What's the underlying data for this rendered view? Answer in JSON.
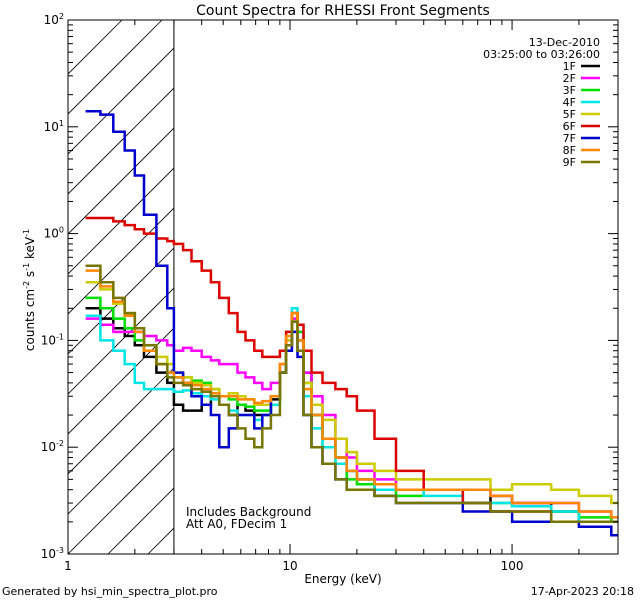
{
  "chart_data": {
    "type": "line",
    "title": "Count Spectra for RHESSI Front Segments",
    "xlabel": "Energy (keV)",
    "ylabel_parts": {
      "base": "counts cm",
      "exp1": "-2",
      "mid": " s",
      "exp2": "-1",
      "mid2": " keV",
      "exp3": "-1"
    },
    "xscale": "log",
    "yscale": "log",
    "xlim": [
      1,
      300
    ],
    "ylim": [
      0.001,
      100
    ],
    "x_ticks": [
      {
        "value": 1,
        "label": "1"
      },
      {
        "value": 10,
        "label": "10"
      },
      {
        "value": 100,
        "label": "100"
      }
    ],
    "y_ticks": [
      {
        "value": 0.001,
        "base": "10",
        "exp": "-3"
      },
      {
        "value": 0.01,
        "base": "10",
        "exp": "-2"
      },
      {
        "value": 0.1,
        "base": "10",
        "exp": "-1"
      },
      {
        "value": 1,
        "base": "10",
        "exp": "0"
      },
      {
        "value": 10,
        "base": "10",
        "exp": "1"
      },
      {
        "value": 100,
        "base": "10",
        "exp": "2"
      }
    ],
    "date": "13-Dec-2010",
    "time_range": "03:25:00 to 03:26:00",
    "hatched_region_max_kev": 3,
    "annotations": [
      "Includes Background",
      "Att A0, FDecim 1"
    ],
    "series": [
      {
        "name": "1F",
        "color": "#000000",
        "x": [
          1.2,
          1.4,
          1.6,
          1.8,
          2.0,
          2.2,
          2.5,
          2.8,
          3.0,
          3.3,
          3.6,
          4.0,
          4.4,
          4.8,
          5.3,
          5.8,
          6.3,
          6.9,
          7.5,
          8.2,
          9.0,
          9.6,
          10.2,
          10.8,
          11.5,
          12.5,
          14,
          16,
          18,
          20,
          24,
          30,
          40,
          60,
          80,
          100,
          150,
          200,
          280
        ],
        "y": [
          0.2,
          0.16,
          0.13,
          0.11,
          0.09,
          0.07,
          0.05,
          0.04,
          0.025,
          0.022,
          0.022,
          0.025,
          0.03,
          0.025,
          0.02,
          0.025,
          0.022,
          0.02,
          0.02,
          0.028,
          0.05,
          0.09,
          0.15,
          0.1,
          0.05,
          0.02,
          0.012,
          0.008,
          0.006,
          0.005,
          0.004,
          0.004,
          0.004,
          0.003,
          0.0035,
          0.003,
          0.0025,
          0.002,
          0.002
        ]
      },
      {
        "name": "2F",
        "color": "#ff00ff",
        "x": [
          1.2,
          1.4,
          1.6,
          1.8,
          2.0,
          2.2,
          2.5,
          2.8,
          3.0,
          3.3,
          3.6,
          4.0,
          4.4,
          4.8,
          5.3,
          5.8,
          6.3,
          6.9,
          7.5,
          8.2,
          9.0,
          9.6,
          10.2,
          10.8,
          11.5,
          12.5,
          14,
          16,
          18,
          20,
          24,
          30,
          40,
          60,
          80,
          100,
          150,
          200,
          280
        ],
        "y": [
          0.16,
          0.14,
          0.12,
          0.12,
          0.12,
          0.11,
          0.1,
          0.09,
          0.08,
          0.085,
          0.08,
          0.07,
          0.065,
          0.06,
          0.06,
          0.05,
          0.045,
          0.04,
          0.035,
          0.04,
          0.06,
          0.1,
          0.16,
          0.12,
          0.05,
          0.03,
          0.02,
          0.012,
          0.008,
          0.006,
          0.005,
          0.004,
          0.004,
          0.004,
          0.0035,
          0.003,
          0.003,
          0.0025,
          0.002
        ]
      },
      {
        "name": "3F",
        "color": "#00dd00",
        "x": [
          1.2,
          1.4,
          1.6,
          1.8,
          2.0,
          2.2,
          2.5,
          2.8,
          3.0,
          3.3,
          3.6,
          4.0,
          4.4,
          4.8,
          5.3,
          5.8,
          6.3,
          6.9,
          7.5,
          8.2,
          9.0,
          9.6,
          10.2,
          10.8,
          11.5,
          12.5,
          14,
          16,
          18,
          20,
          24,
          30,
          40,
          60,
          80,
          100,
          150,
          200,
          280
        ],
        "y": [
          0.25,
          0.2,
          0.16,
          0.13,
          0.1,
          0.08,
          0.06,
          0.05,
          0.045,
          0.045,
          0.042,
          0.04,
          0.035,
          0.03,
          0.028,
          0.025,
          0.024,
          0.022,
          0.022,
          0.025,
          0.05,
          0.1,
          0.18,
          0.12,
          0.04,
          0.02,
          0.01,
          0.007,
          0.005,
          0.0045,
          0.004,
          0.0035,
          0.004,
          0.003,
          0.003,
          0.0028,
          0.0025,
          0.0022,
          0.002
        ]
      },
      {
        "name": "4F",
        "color": "#00e5e5",
        "x": [
          1.2,
          1.4,
          1.6,
          1.8,
          2.0,
          2.2,
          2.5,
          2.8,
          3.0,
          3.3,
          3.6,
          4.0,
          4.4,
          4.8,
          5.3,
          5.8,
          6.3,
          6.9,
          7.5,
          8.2,
          9.0,
          9.6,
          10.2,
          10.8,
          11.5,
          12.5,
          14,
          16,
          18,
          20,
          24,
          30,
          40,
          60,
          80,
          100,
          150,
          200,
          280
        ],
        "y": [
          0.17,
          0.1,
          0.08,
          0.06,
          0.04,
          0.035,
          0.035,
          0.035,
          0.033,
          0.034,
          0.032,
          0.03,
          0.028,
          0.025,
          0.022,
          0.02,
          0.02,
          0.018,
          0.02,
          0.025,
          0.05,
          0.12,
          0.2,
          0.1,
          0.03,
          0.015,
          0.01,
          0.007,
          0.006,
          0.005,
          0.004,
          0.004,
          0.0035,
          0.003,
          0.003,
          0.0028,
          0.0025,
          0.002,
          0.002
        ]
      },
      {
        "name": "5F",
        "color": "#cccc00",
        "x": [
          1.2,
          1.4,
          1.6,
          1.8,
          2.0,
          2.2,
          2.5,
          2.8,
          3.0,
          3.3,
          3.6,
          4.0,
          4.4,
          4.8,
          5.3,
          5.8,
          6.3,
          6.9,
          7.5,
          8.2,
          9.0,
          9.6,
          10.2,
          10.8,
          11.5,
          12.5,
          14,
          16,
          18,
          20,
          24,
          30,
          40,
          60,
          80,
          100,
          150,
          200,
          280
        ],
        "y": [
          0.35,
          0.3,
          0.22,
          0.18,
          0.13,
          0.09,
          0.07,
          0.06,
          0.05,
          0.045,
          0.04,
          0.038,
          0.035,
          0.03,
          0.032,
          0.03,
          0.028,
          0.025,
          0.025,
          0.03,
          0.06,
          0.1,
          0.18,
          0.1,
          0.04,
          0.025,
          0.018,
          0.012,
          0.009,
          0.007,
          0.006,
          0.005,
          0.005,
          0.005,
          0.004,
          0.0045,
          0.004,
          0.0035,
          0.003
        ]
      },
      {
        "name": "6F",
        "color": "#dd0000",
        "x": [
          1.2,
          1.4,
          1.6,
          1.8,
          2.0,
          2.2,
          2.5,
          2.8,
          3.0,
          3.3,
          3.6,
          4.0,
          4.4,
          4.8,
          5.3,
          5.8,
          6.3,
          6.9,
          7.5,
          8.2,
          9.0,
          9.6,
          10.2,
          10.8,
          11.5,
          12.5,
          14,
          16,
          18,
          20,
          24,
          30,
          40,
          60,
          80,
          100,
          150,
          200,
          280
        ],
        "y": [
          1.4,
          1.4,
          1.3,
          1.2,
          1.1,
          1.0,
          0.9,
          0.85,
          0.8,
          0.7,
          0.55,
          0.45,
          0.35,
          0.25,
          0.18,
          0.12,
          0.1,
          0.08,
          0.07,
          0.07,
          0.08,
          0.12,
          0.18,
          0.14,
          0.08,
          0.05,
          0.04,
          0.035,
          0.03,
          0.022,
          0.012,
          0.006,
          0.004,
          0.003,
          0.0025,
          0.0025,
          0.002,
          0.002,
          0.002
        ]
      },
      {
        "name": "7F",
        "color": "#0000cc",
        "x": [
          1.2,
          1.4,
          1.6,
          1.8,
          2.0,
          2.2,
          2.5,
          2.8,
          3.0,
          3.3,
          3.6,
          4.0,
          4.4,
          4.8,
          5.3,
          5.8,
          6.3,
          6.9,
          7.5,
          8.2,
          9.0,
          9.6,
          10.2,
          10.8,
          11.5,
          12.5,
          14,
          16,
          18,
          20,
          24,
          30,
          40,
          60,
          80,
          100,
          150,
          200,
          280
        ],
        "y": [
          14,
          13,
          9,
          6,
          3.5,
          1.5,
          0.5,
          0.2,
          0.05,
          0.04,
          0.03,
          0.025,
          0.02,
          0.01,
          0.015,
          0.02,
          0.02,
          0.015,
          0.02,
          0.03,
          0.05,
          0.08,
          0.12,
          0.07,
          0.02,
          0.01,
          0.007,
          0.005,
          0.004,
          0.004,
          0.0035,
          0.003,
          0.003,
          0.0025,
          0.0025,
          0.002,
          0.002,
          0.0018,
          0.0015
        ]
      },
      {
        "name": "8F",
        "color": "#ff8800",
        "x": [
          1.2,
          1.4,
          1.6,
          1.8,
          2.0,
          2.2,
          2.5,
          2.8,
          3.0,
          3.3,
          3.6,
          4.0,
          4.4,
          4.8,
          5.3,
          5.8,
          6.3,
          6.9,
          7.5,
          8.2,
          9.0,
          9.6,
          10.2,
          10.8,
          11.5,
          12.5,
          14,
          16,
          18,
          20,
          24,
          30,
          40,
          60,
          80,
          100,
          150,
          200,
          280
        ],
        "y": [
          0.45,
          0.32,
          0.23,
          0.17,
          0.12,
          0.08,
          0.06,
          0.05,
          0.045,
          0.04,
          0.038,
          0.035,
          0.032,
          0.03,
          0.03,
          0.028,
          0.028,
          0.026,
          0.027,
          0.03,
          0.06,
          0.11,
          0.18,
          0.1,
          0.035,
          0.02,
          0.012,
          0.008,
          0.006,
          0.005,
          0.0045,
          0.004,
          0.004,
          0.004,
          0.0035,
          0.003,
          0.003,
          0.0025,
          0.0022
        ]
      },
      {
        "name": "9F",
        "color": "#777700",
        "x": [
          1.2,
          1.4,
          1.6,
          1.8,
          2.0,
          2.2,
          2.5,
          2.8,
          3.0,
          3.3,
          3.6,
          4.0,
          4.4,
          4.8,
          5.3,
          5.8,
          6.3,
          6.9,
          7.5,
          8.2,
          9.0,
          9.6,
          10.2,
          10.8,
          11.5,
          12.5,
          14,
          16,
          18,
          20,
          24,
          30,
          40,
          60,
          80,
          100,
          150,
          200,
          280
        ],
        "y": [
          0.5,
          0.35,
          0.25,
          0.18,
          0.13,
          0.09,
          0.06,
          0.045,
          0.04,
          0.038,
          0.035,
          0.033,
          0.03,
          0.025,
          0.02,
          0.015,
          0.012,
          0.01,
          0.015,
          0.02,
          0.05,
          0.09,
          0.15,
          0.08,
          0.02,
          0.01,
          0.007,
          0.005,
          0.004,
          0.004,
          0.0035,
          0.003,
          0.003,
          0.003,
          0.0025,
          0.0025,
          0.002,
          0.002,
          0.002
        ]
      }
    ]
  },
  "footer": {
    "generator": "Generated by hsi_min_spectra_plot.pro",
    "timestamp": "17-Apr-2023 20:18"
  }
}
